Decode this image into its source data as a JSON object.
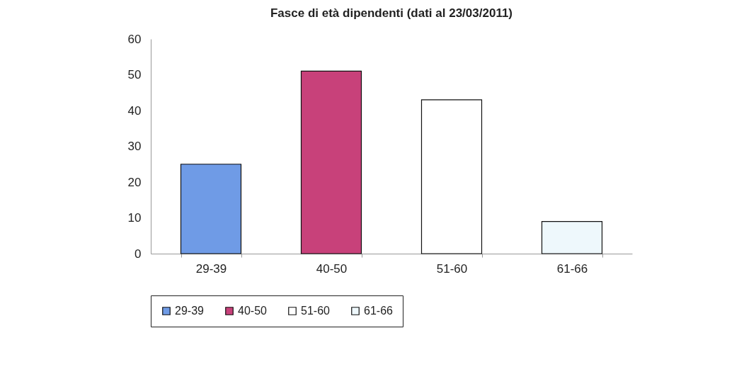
{
  "chart_data": {
    "type": "bar",
    "title": "Fasce di età dipendenti (dati al 23/03/2011)",
    "categories": [
      "29-39",
      "40-50",
      "51-60",
      "61-66"
    ],
    "series": [
      {
        "name": "29-39",
        "color": "#6f9be6",
        "values": [
          25,
          null,
          null,
          null
        ]
      },
      {
        "name": "40-50",
        "color": "#c8417a",
        "values": [
          null,
          51,
          null,
          null
        ]
      },
      {
        "name": "51-60",
        "color": "#ffffff",
        "values": [
          null,
          null,
          43,
          null
        ]
      },
      {
        "name": "61-66",
        "color": "#eef8fc",
        "values": [
          null,
          null,
          null,
          9
        ]
      }
    ],
    "ylim": [
      0,
      60
    ],
    "yticks": [
      0,
      10,
      20,
      30,
      40,
      50,
      60
    ],
    "legend": "bottom"
  }
}
